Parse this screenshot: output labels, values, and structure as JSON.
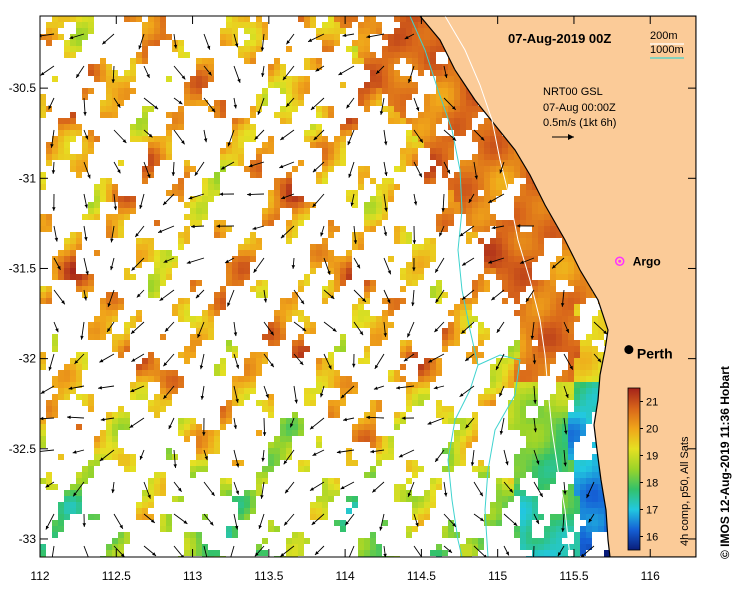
{
  "title": "07-Aug-2019 00Z",
  "credit": "© IMOS 12-Aug-2019 11:36 Hobart",
  "depth_legend": {
    "items": [
      {
        "label": "200m",
        "color": "#ffffff"
      },
      {
        "label": "1000m",
        "color": "#3fd3cf"
      }
    ]
  },
  "current_legend": {
    "lines": [
      "NRT00 GSL",
      "07-Aug 00:00Z",
      "0.5m/s (1kt 6h)"
    ],
    "speed_ms": 0.5
  },
  "markers": [
    {
      "label": "Argo",
      "lon": 115.8,
      "lat": -31.46,
      "color": "#ff33ff",
      "symbol": "circle-dot"
    },
    {
      "label": "Perth",
      "lon": 115.86,
      "lat": -31.95,
      "color": "#000000",
      "symbol": "filled-circle"
    }
  ],
  "colorbar": {
    "label": "4h comp, p50, All Sats",
    "min": 15.5,
    "max": 21.5,
    "ticks": [
      "21",
      "20",
      "19",
      "18",
      "17",
      "16"
    ],
    "colors": [
      "#0a1d7a",
      "#1560d6",
      "#22c8e0",
      "#33c26a",
      "#9bd429",
      "#e6e022",
      "#f0a51a",
      "#d8651a",
      "#a4221a"
    ]
  },
  "axes": {
    "lon_range": [
      112,
      116.3
    ],
    "lat_range": [
      -33.1,
      -30.1
    ],
    "x_ticks": [
      "112",
      "112.5",
      "113",
      "113.5",
      "114",
      "114.5",
      "115",
      "115.5",
      "116"
    ],
    "y_ticks": [
      "-30.5",
      "-31",
      "-31.5",
      "-32",
      "-32.5",
      "-33"
    ]
  },
  "colors": {
    "land": "#fbcb98",
    "coast": "#000000",
    "isobath_1000m": "#3fd3cf",
    "isobath_200m": "#ffffff"
  }
}
